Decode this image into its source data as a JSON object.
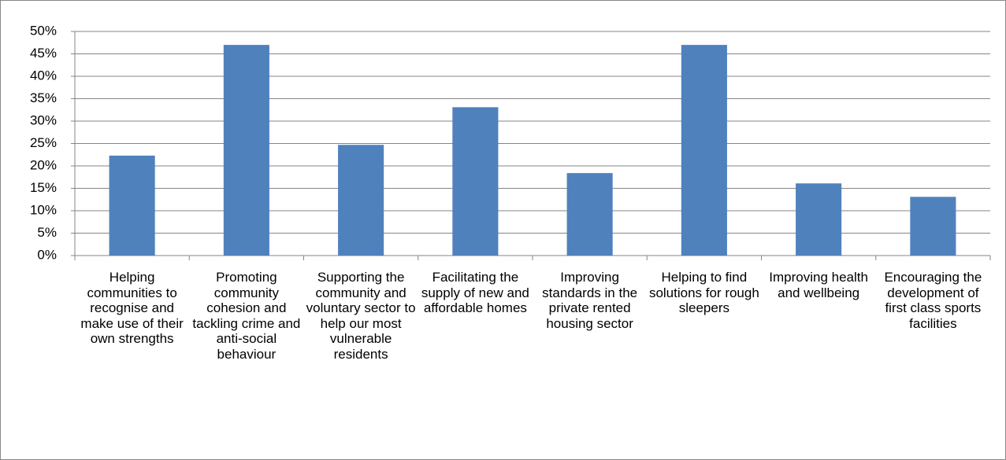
{
  "chart_data": {
    "type": "bar",
    "categories": [
      "Helping communities to recognise and make use of their own strengths",
      "Promoting community cohesion and tackling crime and anti-social behaviour",
      "Supporting the community and voluntary sector to help our most vulnerable residents",
      "Facilitating the supply of new and affordable homes",
      "Improving standards in the private rented housing sector",
      "Helping to find solutions for rough sleepers",
      "Improving health and wellbeing",
      "Encouraging the development of first class sports facilities"
    ],
    "values": [
      22.3,
      47,
      24.7,
      33.1,
      18.4,
      47,
      16.1,
      13.1
    ],
    "color": "#4f81bd",
    "ylim": [
      0,
      50
    ],
    "yticks": [
      {
        "value": 0,
        "label": "0%"
      },
      {
        "value": 5,
        "label": "5%"
      },
      {
        "value": 10,
        "label": "10%"
      },
      {
        "value": 15,
        "label": "15%"
      },
      {
        "value": 20,
        "label": "20%"
      },
      {
        "value": 25,
        "label": "25%"
      },
      {
        "value": 30,
        "label": "30%"
      },
      {
        "value": 35,
        "label": "35%"
      },
      {
        "value": 40,
        "label": "40%"
      },
      {
        "value": 45,
        "label": "45%"
      },
      {
        "value": 50,
        "label": "50%"
      }
    ],
    "grid": true
  }
}
